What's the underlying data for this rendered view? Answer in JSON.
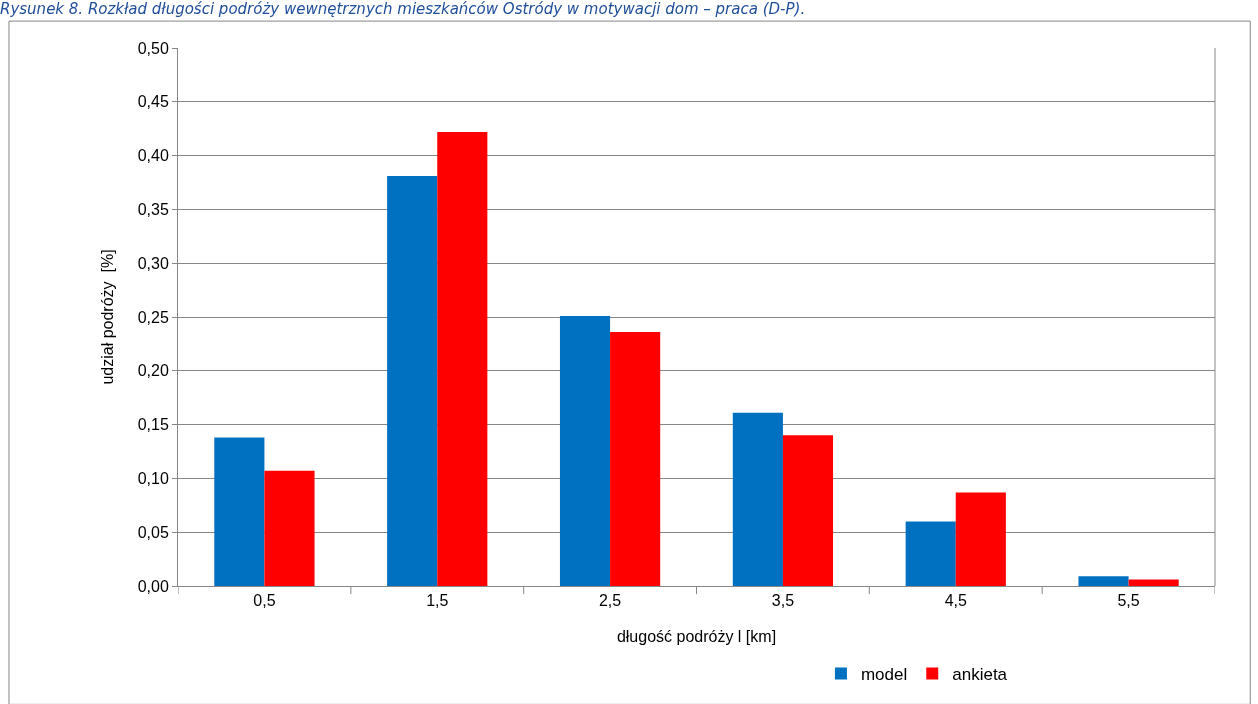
{
  "chart_data": {
    "type": "bar",
    "title": "Rysunek 8. Rozkład długości podróży wewnętrznych mieszkańców Ostródy w motywacji dom – praca (D-P).",
    "xlabel": "długość podróży l [km]",
    "ylabel": "udział podróży  [%]",
    "categories": [
      "0,5",
      "1,5",
      "2,5",
      "3,5",
      "4,5",
      "5,5"
    ],
    "series": [
      {
        "name": "model",
        "color": "#0070c0",
        "values": [
          0.138,
          0.381,
          0.251,
          0.161,
          0.06,
          0.009
        ]
      },
      {
        "name": "ankieta",
        "color": "#ff0000",
        "values": [
          0.107,
          0.422,
          0.236,
          0.14,
          0.087,
          0.006
        ]
      }
    ],
    "ylim": [
      0,
      0.5
    ],
    "yticks": [
      {
        "value": 0,
        "label": "0,00"
      },
      {
        "value": 0.05,
        "label": "0,05"
      },
      {
        "value": 0.1,
        "label": "0,10"
      },
      {
        "value": 0.15,
        "label": "0,15"
      },
      {
        "value": 0.2,
        "label": "0,20"
      },
      {
        "value": 0.25,
        "label": "0,25"
      },
      {
        "value": 0.3,
        "label": "0,30"
      },
      {
        "value": 0.35,
        "label": "0,35"
      },
      {
        "value": 0.4,
        "label": "0,40"
      },
      {
        "value": 0.45,
        "label": "0,45"
      },
      {
        "value": 0.5,
        "label": "0,50"
      }
    ],
    "grid": "y",
    "legend": "bottom"
  }
}
